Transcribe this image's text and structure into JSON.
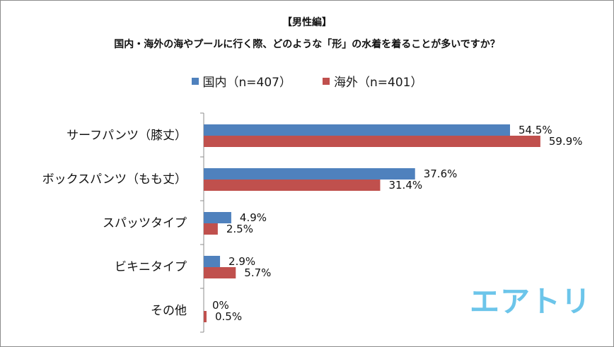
{
  "chart_data": {
    "type": "bar",
    "orientation": "horizontal",
    "title": "【男性編】",
    "subtitle": "国内・海外の海やプールに行く際、どのような「形」の水着を着ることが多いですか？",
    "categories": [
      "サーフパンツ（膝丈）",
      "ボックスパンツ（もも丈）",
      "スパッツタイプ",
      "ビキニタイプ",
      "その他"
    ],
    "series": [
      {
        "name": "国内（n=407）",
        "values": [
          54.5,
          37.6,
          4.9,
          2.9,
          0
        ],
        "labels": [
          "54.5%",
          "37.6%",
          "4.9%",
          "2.9%",
          "0%"
        ],
        "color": "#4f81bd"
      },
      {
        "name": "海外（n=401）",
        "values": [
          59.9,
          31.4,
          2.5,
          5.7,
          0.5
        ],
        "labels": [
          "59.9%",
          "31.4%",
          "2.5%",
          "5.7%",
          "0.5%"
        ],
        "color": "#c0504d"
      }
    ],
    "xlim": [
      0,
      100
    ],
    "legend": "top-center",
    "grid": false
  },
  "logo_text": "エアトリ"
}
